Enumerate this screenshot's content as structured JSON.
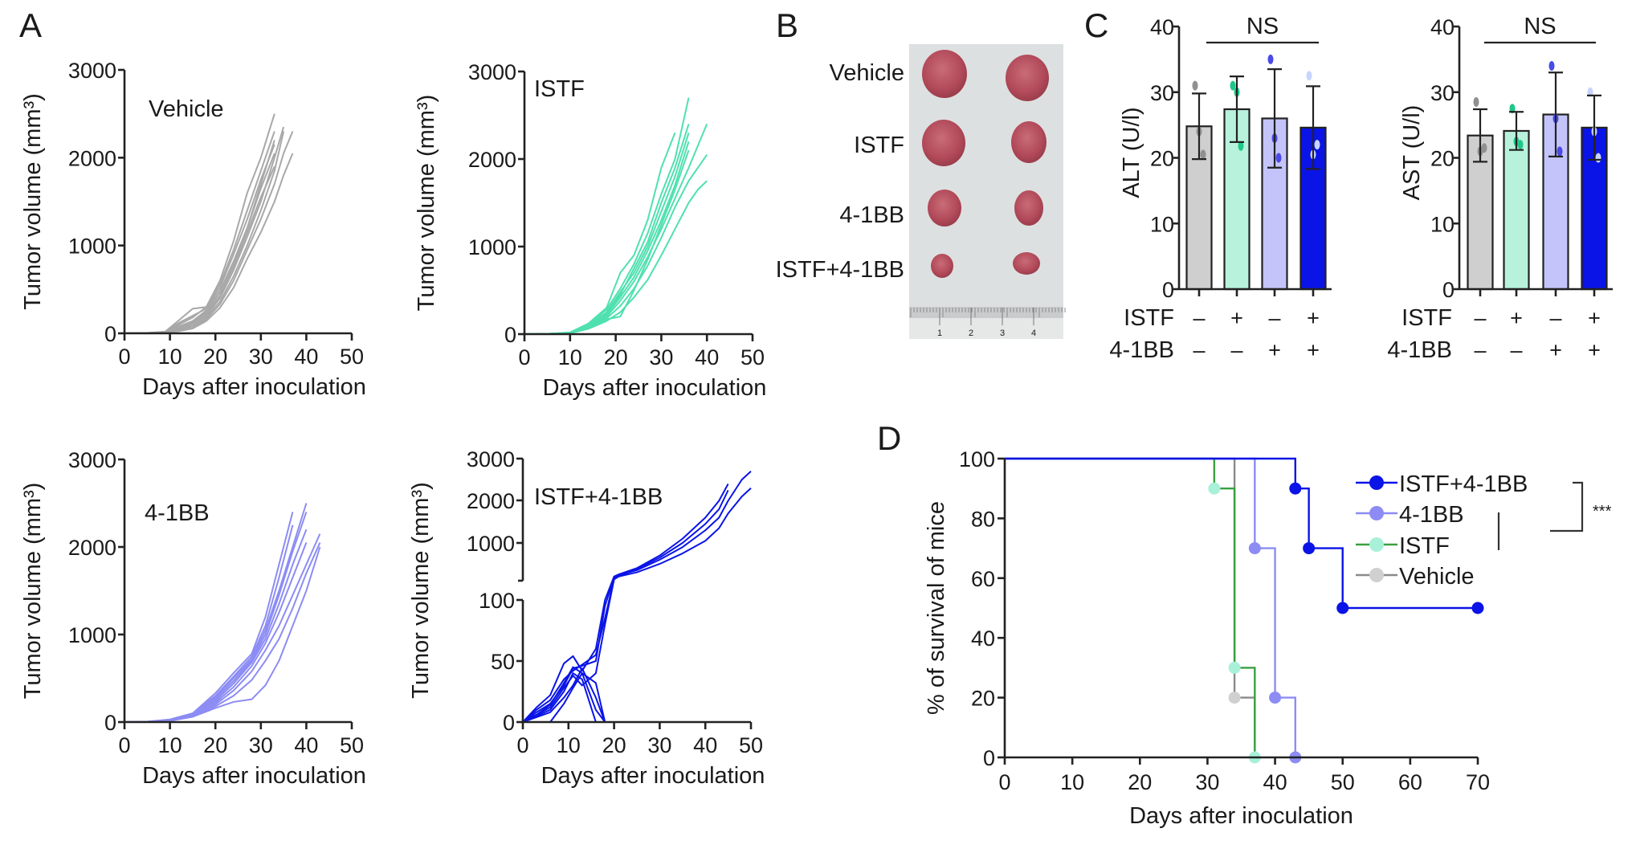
{
  "panels": {
    "A": "A",
    "B": "B",
    "C": "C",
    "D": "D"
  },
  "colors": {
    "vehicle": "#a8a8a8",
    "istf": "#4fe0b0",
    "istf_fill": "#b8f2dc",
    "istf_line_d": "#3aa040",
    "istf_dot_d": "#a8f0d8",
    "anti41bb": "#8c8cf4",
    "anti41bb_fill": "#c4c4fa",
    "combo": "#0a14e6",
    "vehicle_fill": "#cfcfcf"
  },
  "chart_data": [
    {
      "id": "A-vehicle",
      "type": "line",
      "title": "Vehicle",
      "xlabel": "Days after inoculation",
      "ylabel": "Tumor volume (mm³)",
      "xlim": [
        0,
        50
      ],
      "ylim": [
        0,
        3000
      ],
      "xticks": [
        "0",
        "10",
        "20",
        "30",
        "40",
        "50"
      ],
      "yticks": [
        "0",
        "1000",
        "2000",
        "3000"
      ],
      "series_x": [
        0,
        5,
        9,
        12,
        15,
        18,
        21,
        24,
        27,
        30,
        33,
        35,
        37
      ],
      "series": [
        {
          "values": [
            0,
            5,
            20,
            150,
            280,
            300,
            600,
            1050,
            1600,
            2000,
            2500,
            null,
            null
          ]
        },
        {
          "values": [
            0,
            5,
            15,
            120,
            200,
            280,
            520,
            900,
            1300,
            1750,
            2150,
            null,
            null
          ]
        },
        {
          "values": [
            0,
            4,
            15,
            80,
            140,
            260,
            480,
            820,
            1200,
            1650,
            2050,
            null,
            null
          ]
        },
        {
          "values": [
            0,
            3,
            12,
            60,
            120,
            220,
            430,
            760,
            1150,
            1550,
            1900,
            null,
            null
          ]
        },
        {
          "values": [
            0,
            3,
            10,
            50,
            100,
            200,
            400,
            720,
            1100,
            1500,
            2000,
            2350,
            null
          ]
        },
        {
          "values": [
            0,
            3,
            10,
            40,
            80,
            180,
            360,
            650,
            1000,
            1400,
            1850,
            2300,
            null
          ]
        },
        {
          "values": [
            0,
            2,
            8,
            30,
            60,
            160,
            330,
            600,
            950,
            1300,
            1700,
            2050,
            2300
          ]
        },
        {
          "values": [
            0,
            2,
            8,
            25,
            55,
            140,
            290,
            520,
            850,
            1150,
            1500,
            1800,
            2050
          ]
        },
        {
          "values": [
            0,
            4,
            18,
            100,
            180,
            300,
            560,
            950,
            1400,
            1850,
            2300,
            null,
            null
          ]
        },
        {
          "values": [
            0,
            3,
            10,
            70,
            130,
            240,
            470,
            800,
            1200,
            1700,
            2200,
            null,
            null
          ]
        }
      ]
    },
    {
      "id": "A-istf",
      "type": "line",
      "title": "ISTF",
      "xlabel": "Days after inoculation",
      "ylabel": "Tumor volume (mm³)",
      "xlim": [
        0,
        50
      ],
      "ylim": [
        0,
        3000
      ],
      "xticks": [
        "0",
        "10",
        "20",
        "30",
        "40",
        "50"
      ],
      "yticks": [
        "0",
        "1000",
        "2000",
        "3000"
      ],
      "series_x": [
        0,
        5,
        10,
        14,
        18,
        21,
        24,
        27,
        30,
        33,
        36,
        38,
        40
      ],
      "series": [
        {
          "values": [
            0,
            3,
            20,
            120,
            300,
            700,
            900,
            1300,
            1900,
            2300,
            null,
            null,
            null
          ]
        },
        {
          "values": [
            0,
            3,
            18,
            110,
            280,
            520,
            800,
            1150,
            1600,
            2000,
            2700,
            null,
            null
          ]
        },
        {
          "values": [
            0,
            3,
            15,
            100,
            250,
            480,
            700,
            1000,
            1400,
            1800,
            2300,
            null,
            null
          ]
        },
        {
          "values": [
            0,
            2,
            14,
            90,
            220,
            420,
            650,
            950,
            1300,
            1700,
            2200,
            null,
            null
          ]
        },
        {
          "values": [
            0,
            2,
            12,
            80,
            200,
            380,
            600,
            880,
            1200,
            1550,
            1900,
            2150,
            2400
          ]
        },
        {
          "values": [
            0,
            2,
            12,
            70,
            180,
            320,
            520,
            780,
            1100,
            1450,
            1750,
            1900,
            2050
          ]
        },
        {
          "values": [
            0,
            2,
            10,
            60,
            150,
            250,
            420,
            620,
            900,
            1200,
            1500,
            1650,
            1750
          ]
        },
        {
          "values": [
            0,
            2,
            10,
            70,
            170,
            200,
            500,
            850,
            1250,
            1650,
            2100,
            null,
            null
          ]
        },
        {
          "values": [
            0,
            3,
            16,
            100,
            240,
            450,
            750,
            1050,
            1500,
            1900,
            2400,
            null,
            null
          ]
        }
      ]
    },
    {
      "id": "A-4-1BB",
      "type": "line",
      "title": "4-1BB",
      "xlabel": "Days after inoculation",
      "ylabel": "Tumor volume (mm³)",
      "xlim": [
        0,
        50
      ],
      "ylim": [
        0,
        3000
      ],
      "xticks": [
        "0",
        "10",
        "20",
        "30",
        "40",
        "50"
      ],
      "yticks": [
        "0",
        "1000",
        "2000",
        "3000"
      ],
      "series_x": [
        0,
        5,
        10,
        15,
        20,
        24,
        28,
        31,
        34,
        37,
        40,
        43
      ],
      "series": [
        {
          "values": [
            0,
            5,
            30,
            100,
            330,
            560,
            780,
            1200,
            1800,
            2400,
            null,
            null
          ]
        },
        {
          "values": [
            0,
            5,
            28,
            95,
            300,
            520,
            750,
            1100,
            1650,
            2250,
            null,
            null
          ]
        },
        {
          "values": [
            0,
            4,
            26,
            90,
            280,
            500,
            720,
            1050,
            1500,
            2000,
            2500,
            null
          ]
        },
        {
          "values": [
            0,
            4,
            24,
            85,
            260,
            470,
            700,
            1000,
            1450,
            1950,
            2400,
            null
          ]
        },
        {
          "values": [
            0,
            4,
            22,
            80,
            240,
            440,
            680,
            950,
            1350,
            1800,
            2200,
            null
          ]
        },
        {
          "values": [
            0,
            3,
            20,
            75,
            220,
            400,
            640,
            900,
            1250,
            1650,
            2050,
            null
          ]
        },
        {
          "values": [
            0,
            3,
            18,
            70,
            200,
            360,
            580,
            820,
            1100,
            1450,
            1800,
            2150
          ]
        },
        {
          "values": [
            0,
            3,
            16,
            65,
            180,
            300,
            480,
            700,
            950,
            1300,
            1700,
            2050
          ]
        },
        {
          "values": [
            0,
            3,
            14,
            60,
            160,
            230,
            260,
            420,
            700,
            1100,
            1500,
            2000
          ]
        }
      ]
    },
    {
      "id": "A-istf-4-1BB",
      "type": "line",
      "title": "ISTF+4-1BB",
      "xlabel": "Days after inoculation",
      "ylabel": "Tumor volume (mm³)",
      "xlim": [
        0,
        50
      ],
      "ylim_lower": [
        0,
        100
      ],
      "ylim_upper": [
        100,
        3000
      ],
      "xticks": [
        "0",
        "10",
        "20",
        "30",
        "40",
        "50"
      ],
      "yticks_lower": [
        "0",
        "50",
        "100"
      ],
      "yticks_upper": [
        "1000",
        "2000",
        "3000"
      ],
      "series_x": [
        0,
        3,
        6,
        9,
        11,
        13,
        16,
        18,
        20,
        21,
        25,
        30,
        35,
        40,
        43,
        45,
        48,
        50
      ],
      "series": [
        {
          "values": [
            0,
            12,
            22,
            48,
            54,
            42,
            60,
            100,
            200,
            250,
            400,
            700,
            1100,
            1600,
            2000,
            2400,
            null,
            null
          ]
        },
        {
          "values": [
            0,
            10,
            18,
            35,
            42,
            47,
            55,
            85,
            150,
            200,
            380,
            650,
            1000,
            1450,
            1800,
            2250,
            null,
            null
          ]
        },
        {
          "values": [
            0,
            8,
            15,
            30,
            44,
            46,
            50,
            95,
            180,
            230,
            350,
            600,
            900,
            1300,
            1600,
            2000,
            2500,
            2700
          ]
        },
        {
          "values": [
            0,
            6,
            12,
            28,
            38,
            30,
            40,
            80,
            130,
            200,
            300,
            500,
            750,
            1050,
            1350,
            1700,
            2100,
            2300
          ]
        },
        {
          "values": [
            0,
            5,
            10,
            25,
            40,
            35,
            0,
            0,
            0,
            0,
            0,
            0,
            0,
            0,
            0,
            0,
            0,
            0
          ]
        },
        {
          "values": [
            0,
            4,
            8,
            20,
            30,
            44,
            20,
            0,
            0,
            0,
            0,
            0,
            0,
            0,
            0,
            0,
            0,
            0
          ]
        },
        {
          "values": [
            0,
            6,
            14,
            32,
            45,
            40,
            10,
            0,
            0,
            0,
            0,
            0,
            0,
            0,
            0,
            0,
            0,
            0
          ]
        },
        {
          "values": [
            null,
            null,
            0,
            15,
            28,
            40,
            32,
            0,
            0,
            0,
            0,
            0,
            0,
            0,
            0,
            0,
            0,
            0
          ]
        }
      ]
    },
    {
      "id": "C-ALT",
      "type": "bar",
      "ylabel": "ALT (U/l)",
      "ylim": [
        0,
        40
      ],
      "yticks": [
        "0",
        "10",
        "20",
        "30",
        "40"
      ],
      "categories": [
        "Vehicle",
        "ISTF",
        "4-1BB",
        "ISTF+4-1BB"
      ],
      "values": [
        24.8,
        27.4,
        26.0,
        24.6
      ],
      "errors": [
        5.0,
        5.0,
        7.5,
        6.3
      ],
      "points": [
        [
          31,
          24,
          20.5
        ],
        [
          31,
          30,
          21.8
        ],
        [
          35,
          23,
          20
        ],
        [
          32.5,
          20.5,
          22
        ]
      ],
      "significance": "NS",
      "row_labels": [
        "ISTF",
        "4-1BB"
      ],
      "istf_signs": [
        "–",
        "+",
        "–",
        "+"
      ],
      "anti41bb_signs": [
        "–",
        "–",
        "+",
        "+"
      ]
    },
    {
      "id": "C-AST",
      "type": "bar",
      "ylabel": "AST (U/l)",
      "ylim": [
        0,
        40
      ],
      "yticks": [
        "0",
        "10",
        "20",
        "30",
        "40"
      ],
      "categories": [
        "Vehicle",
        "ISTF",
        "4-1BB",
        "ISTF+4-1BB"
      ],
      "values": [
        23.4,
        24.1,
        26.6,
        24.6
      ],
      "errors": [
        4.0,
        2.9,
        6.4,
        4.9
      ],
      "points": [
        [
          28.5,
          21,
          21.5
        ],
        [
          27.5,
          22.5,
          22
        ],
        [
          34,
          26,
          21
        ],
        [
          30,
          24,
          20
        ]
      ],
      "significance": "NS",
      "row_labels": [
        "ISTF",
        "4-1BB"
      ],
      "istf_signs": [
        "–",
        "+",
        "–",
        "+"
      ],
      "anti41bb_signs": [
        "–",
        "–",
        "+",
        "+"
      ]
    },
    {
      "id": "D-survival",
      "type": "line",
      "subtype": "kaplan-meier",
      "xlabel": "Days after inoculation",
      "ylabel": "% of survival of mice",
      "xlim": [
        0,
        70
      ],
      "ylim": [
        0,
        100
      ],
      "xticks": [
        "0",
        "10",
        "20",
        "30",
        "40",
        "50",
        "60",
        "70"
      ],
      "yticks": [
        "0",
        "20",
        "40",
        "60",
        "80",
        "100"
      ],
      "legend": [
        "ISTF+4-1BB",
        "4-1BB",
        "ISTF",
        "Vehicle"
      ],
      "legend_position": "top-right",
      "significance": "***",
      "series": [
        {
          "name": "Vehicle",
          "steps": [
            [
              0,
              100
            ],
            [
              34,
              20
            ],
            [
              37,
              0
            ]
          ],
          "markers": [
            [
              34,
              20
            ]
          ]
        },
        {
          "name": "ISTF",
          "steps": [
            [
              0,
              100
            ],
            [
              31,
              90
            ],
            [
              34,
              30
            ],
            [
              37,
              0
            ]
          ],
          "markers": [
            [
              31,
              90
            ],
            [
              34,
              30
            ],
            [
              37,
              0
            ]
          ]
        },
        {
          "name": "4-1BB",
          "steps": [
            [
              0,
              100
            ],
            [
              37,
              70
            ],
            [
              40,
              20
            ],
            [
              43,
              0
            ]
          ],
          "markers": [
            [
              37,
              70
            ],
            [
              40,
              20
            ],
            [
              43,
              0
            ]
          ]
        },
        {
          "name": "ISTF+4-1BB",
          "steps": [
            [
              0,
              100
            ],
            [
              43,
              90
            ],
            [
              45,
              70
            ],
            [
              50,
              50
            ]
          ],
          "end": 70,
          "markers": [
            [
              43,
              90
            ],
            [
              45,
              70
            ],
            [
              50,
              50
            ],
            [
              70,
              50
            ]
          ]
        }
      ]
    }
  ],
  "photo": {
    "row_labels": [
      "Vehicle",
      "ISTF",
      "4-1BB",
      "ISTF+4-1BB"
    ],
    "ruler_labels": [
      "1",
      "2",
      "3",
      "4"
    ]
  }
}
